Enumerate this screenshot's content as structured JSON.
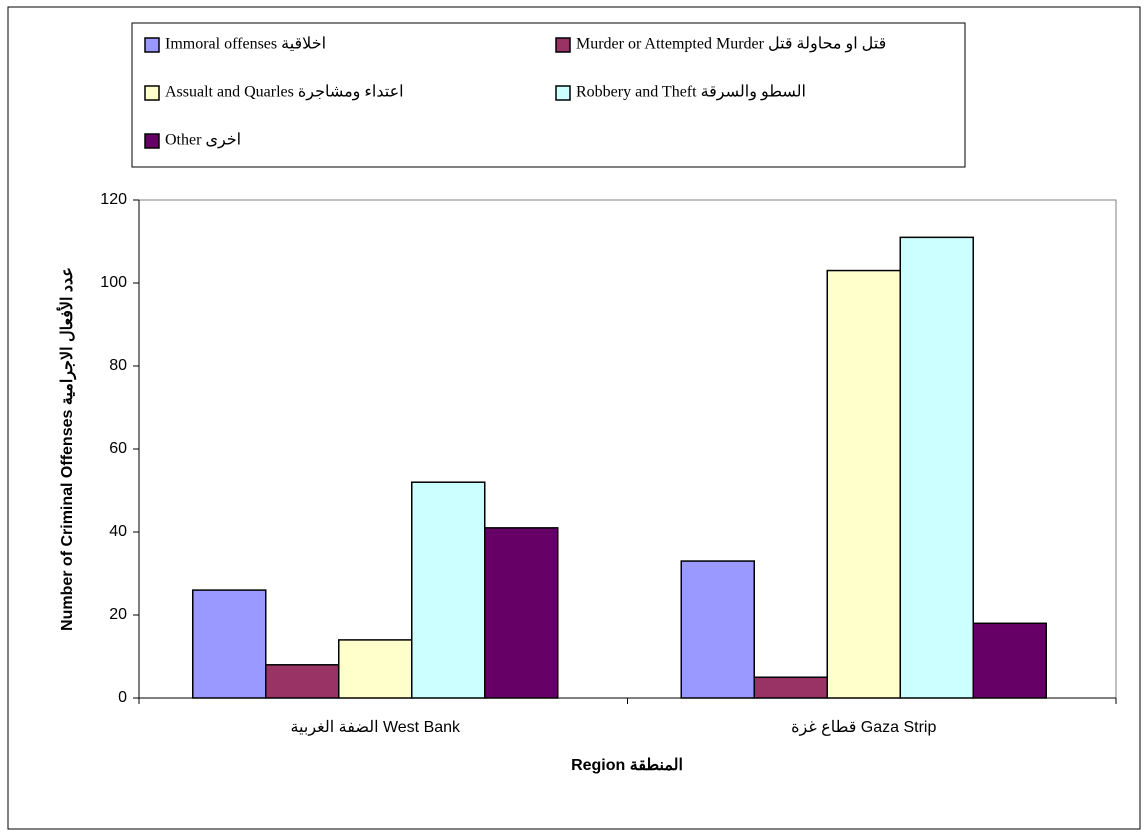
{
  "chart_data": {
    "type": "bar",
    "categories": [
      "الضفة الغربية West Bank",
      "قطاع غزة Gaza Strip"
    ],
    "series": [
      {
        "name": "Immoral offenses اخلاقية",
        "color": "#9999ff",
        "values": [
          26,
          33
        ]
      },
      {
        "name": "Murder or Attempted Murder قتل او محاولة قتل",
        "color": "#993366",
        "values": [
          8,
          5
        ]
      },
      {
        "name": "Assualt and Quarles اعتداء ومشاجرة",
        "color": "#ffffcc",
        "values": [
          14,
          103
        ]
      },
      {
        "name": "Robbery and Theft السطو والسرقة",
        "color": "#ccffff",
        "values": [
          52,
          111
        ]
      },
      {
        "name": "Other اخرى",
        "color": "#660066",
        "values": [
          41,
          18
        ]
      }
    ],
    "xlabel": "Region المنطقة",
    "ylabel": "Number of Criminal Offenses عدد الأفعال الاجرامية",
    "ylim": [
      0,
      120
    ],
    "yticks": [
      0,
      20,
      40,
      60,
      80,
      100,
      120
    ],
    "grid": false
  }
}
